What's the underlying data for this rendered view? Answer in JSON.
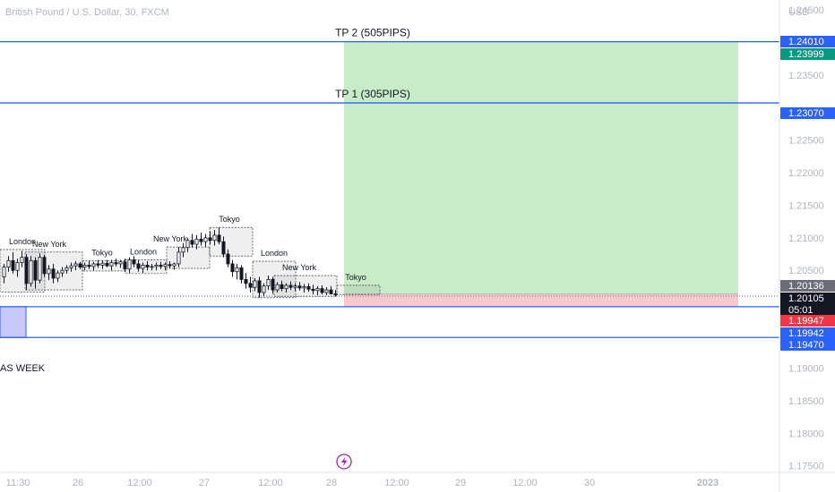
{
  "header": {
    "title": "British Pound / U.S. Dollar, 30, FXCM",
    "currency": "USD"
  },
  "colors": {
    "up": "#131722",
    "line_blue": "#2962ff",
    "profit_zone": "#c8ebc8",
    "loss_zone": "#f8c8cc",
    "zone_purple": "#c7c9fb",
    "grid": "#f0f3fa"
  },
  "chart_data": {
    "type": "candlestick",
    "symbol": "British Pound / U.S. Dollar, 30, FXCM",
    "ylim": [
      1.174,
      1.2465
    ],
    "price_ticks": [
      {
        "value": 1.245,
        "label": "1.24500"
      },
      {
        "value": 1.235,
        "label": "1.23500"
      },
      {
        "value": 1.225,
        "label": "1.22500"
      },
      {
        "value": 1.22,
        "label": "1.22000"
      },
      {
        "value": 1.215,
        "label": "1.21500"
      },
      {
        "value": 1.21,
        "label": "1.21000"
      },
      {
        "value": 1.205,
        "label": "1.20500"
      },
      {
        "value": 1.19,
        "label": "1.19000"
      },
      {
        "value": 1.185,
        "label": "1.18500"
      },
      {
        "value": 1.18,
        "label": "1.18000"
      },
      {
        "value": 1.175,
        "label": "1.17500"
      }
    ],
    "time_ticks": [
      "11:30",
      "26",
      "12:00",
      "27",
      "12:00",
      "28",
      "12:00",
      "29",
      "12:00",
      "30",
      "2023"
    ],
    "price_tags": [
      {
        "value": 1.2401,
        "label": "1.24010",
        "color": "#2962ff"
      },
      {
        "value": 1.23999,
        "label": "1.23999",
        "color": "#089981"
      },
      {
        "value": 1.2307,
        "label": "1.23070",
        "color": "#2962ff"
      },
      {
        "value": 1.20136,
        "label": "1.20136",
        "color": "#6a6d78"
      },
      {
        "value": 1.20105,
        "label": "1.20105",
        "color": "#131722",
        "sub": "05:01"
      },
      {
        "value": 1.19947,
        "label": "1.19947",
        "color": "#f23645"
      },
      {
        "value": 1.19942,
        "label": "1.19942",
        "color": "#2962ff"
      },
      {
        "value": 1.1947,
        "label": "1.19470",
        "color": "#2962ff"
      }
    ],
    "horizontal_lines": [
      {
        "value": 1.2401,
        "text": "TP 2 (505PIPS)"
      },
      {
        "value": 1.2307,
        "text": "TP 1 (305PIPS)"
      },
      {
        "value": 1.19942,
        "text": ""
      },
      {
        "value": 1.1947,
        "text": ""
      }
    ],
    "position": {
      "entry": 1.20136,
      "target": 1.2401,
      "stop": 1.19947
    },
    "left_zone": {
      "top": 1.19942,
      "bottom": 1.1947
    },
    "annotation": "AS WEEK",
    "sessions": [
      {
        "label": "London",
        "low": 1.2017,
        "high": 1.2082
      },
      {
        "label": "New York",
        "low": 1.202,
        "high": 1.2078
      },
      {
        "label": "Tokyo",
        "low": 1.2049,
        "high": 1.2065
      },
      {
        "label": "London",
        "low": 1.2045,
        "high": 1.2066
      },
      {
        "label": "New York",
        "low": 1.2053,
        "high": 1.2086
      },
      {
        "label": "Tokyo",
        "low": 1.2072,
        "high": 1.2116
      },
      {
        "label": "London",
        "low": 1.2008,
        "high": 1.2064
      },
      {
        "label": "New York",
        "low": 1.201,
        "high": 1.2042
      },
      {
        "label": "Tokyo",
        "low": 1.2013,
        "high": 1.2027
      }
    ],
    "candles": [
      [
        1.204,
        1.206,
        1.203,
        1.2055
      ],
      [
        1.2055,
        1.2072,
        1.2048,
        1.2065
      ],
      [
        1.2065,
        1.2078,
        1.2045,
        1.205
      ],
      [
        1.205,
        1.2068,
        1.204,
        1.2062
      ],
      [
        1.2062,
        1.208,
        1.2055,
        1.207
      ],
      [
        1.207,
        1.2075,
        1.202,
        1.203
      ],
      [
        1.203,
        1.2072,
        1.2025,
        1.2065
      ],
      [
        1.2065,
        1.207,
        1.2022,
        1.2035
      ],
      [
        1.2035,
        1.2076,
        1.203,
        1.207
      ],
      [
        1.207,
        1.2074,
        1.204,
        1.2045
      ],
      [
        1.2045,
        1.2058,
        1.2035,
        1.2052
      ],
      [
        1.2052,
        1.206,
        1.203,
        1.2038
      ],
      [
        1.2038,
        1.205,
        1.2032,
        1.2046
      ],
      [
        1.2046,
        1.2055,
        1.204,
        1.205
      ],
      [
        1.205,
        1.2058,
        1.2045,
        1.2054
      ],
      [
        1.2054,
        1.2062,
        1.2048,
        1.2057
      ],
      [
        1.2057,
        1.2064,
        1.205,
        1.206
      ],
      [
        1.206,
        1.2063,
        1.2052,
        1.2055
      ],
      [
        1.2055,
        1.2062,
        1.205,
        1.2058
      ],
      [
        1.2058,
        1.2064,
        1.2052,
        1.2056
      ],
      [
        1.2056,
        1.2063,
        1.205,
        1.206
      ],
      [
        1.206,
        1.2066,
        1.2054,
        1.2058
      ],
      [
        1.2058,
        1.2065,
        1.2052,
        1.2061
      ],
      [
        1.2061,
        1.2066,
        1.2055,
        1.2057
      ],
      [
        1.2057,
        1.2066,
        1.205,
        1.2062
      ],
      [
        1.2062,
        1.2068,
        1.2056,
        1.206
      ],
      [
        1.206,
        1.2066,
        1.2054,
        1.2063
      ],
      [
        1.2063,
        1.2068,
        1.2048,
        1.2052
      ],
      [
        1.2052,
        1.207,
        1.2046,
        1.2066
      ],
      [
        1.2066,
        1.2072,
        1.2055,
        1.206
      ],
      [
        1.206,
        1.2066,
        1.2048,
        1.2053
      ],
      [
        1.2053,
        1.2062,
        1.2046,
        1.2058
      ],
      [
        1.2058,
        1.2064,
        1.205,
        1.2055
      ],
      [
        1.2055,
        1.206,
        1.205,
        1.2056
      ],
      [
        1.2056,
        1.2062,
        1.205,
        1.2058
      ],
      [
        1.2058,
        1.2063,
        1.2052,
        1.2056
      ],
      [
        1.2056,
        1.2062,
        1.205,
        1.2059
      ],
      [
        1.2059,
        1.2064,
        1.2053,
        1.2057
      ],
      [
        1.2057,
        1.2062,
        1.2051,
        1.206
      ],
      [
        1.206,
        1.2086,
        1.2055,
        1.2078
      ],
      [
        1.2078,
        1.2092,
        1.207,
        1.2085
      ],
      [
        1.2085,
        1.21,
        1.2078,
        1.2096
      ],
      [
        1.2096,
        1.2106,
        1.2085,
        1.209
      ],
      [
        1.209,
        1.2104,
        1.2082,
        1.2098
      ],
      [
        1.2098,
        1.2108,
        1.2088,
        1.2094
      ],
      [
        1.2094,
        1.2106,
        1.2086,
        1.21
      ],
      [
        1.21,
        1.211,
        1.209,
        1.2096
      ],
      [
        1.2096,
        1.2112,
        1.2088,
        1.2104
      ],
      [
        1.2104,
        1.2116,
        1.209,
        1.2094
      ],
      [
        1.2094,
        1.2102,
        1.207,
        1.2075
      ],
      [
        1.2075,
        1.2082,
        1.2055,
        1.206
      ],
      [
        1.206,
        1.2066,
        1.204,
        1.2048
      ],
      [
        1.2048,
        1.206,
        1.2036,
        1.2054
      ],
      [
        1.2054,
        1.2058,
        1.203,
        1.2036
      ],
      [
        1.2036,
        1.2046,
        1.2022,
        1.203
      ],
      [
        1.203,
        1.204,
        1.2016,
        1.2024
      ],
      [
        1.2024,
        1.2038,
        1.2018,
        1.2034
      ],
      [
        1.2034,
        1.204,
        1.2008,
        1.2016
      ],
      [
        1.2016,
        1.203,
        1.201,
        1.2026
      ],
      [
        1.2026,
        1.2042,
        1.202,
        1.2036
      ],
      [
        1.2036,
        1.204,
        1.2014,
        1.202
      ],
      [
        1.202,
        1.2032,
        1.2016,
        1.2028
      ],
      [
        1.2028,
        1.2034,
        1.2018,
        1.2022
      ],
      [
        1.2022,
        1.203,
        1.2016,
        1.2027
      ],
      [
        1.2027,
        1.2033,
        1.202,
        1.2024
      ],
      [
        1.2024,
        1.203,
        1.2018,
        1.2026
      ],
      [
        1.2026,
        1.2032,
        1.2019,
        1.2023
      ],
      [
        1.2023,
        1.2029,
        1.2016,
        1.2025
      ],
      [
        1.2025,
        1.203,
        1.2017,
        1.2021
      ],
      [
        1.2021,
        1.2028,
        1.2013,
        1.2019
      ],
      [
        1.2019,
        1.2026,
        1.2012,
        1.2022
      ],
      [
        1.2022,
        1.2027,
        1.2013,
        1.2016
      ],
      [
        1.2016,
        1.2024,
        1.2012,
        1.202
      ],
      [
        1.202,
        1.2026,
        1.2013,
        1.2014
      ],
      [
        1.2014,
        1.202,
        1.201,
        1.2013
      ]
    ]
  }
}
